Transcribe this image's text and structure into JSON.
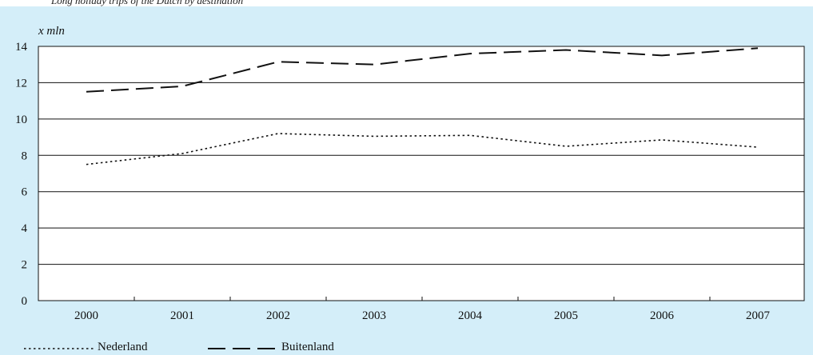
{
  "caption": "Long holiday trips of the Dutch by destination",
  "chart_data": {
    "type": "line",
    "title": "Long holiday trips of the Dutch by destination",
    "ylabel": "x mln",
    "xlabel": "",
    "categories": [
      "2000",
      "2001",
      "2002",
      "2003",
      "2004",
      "2005",
      "2006",
      "2007"
    ],
    "yticks": [
      "0",
      "2",
      "4",
      "6",
      "8",
      "10",
      "12",
      "14"
    ],
    "ylim": [
      0,
      14
    ],
    "grid": "horizontal",
    "legend_position": "bottom",
    "series": [
      {
        "name": "Nederland",
        "style": "dotted",
        "values": [
          7.5,
          8.1,
          9.2,
          9.05,
          9.1,
          8.5,
          8.85,
          8.45
        ]
      },
      {
        "name": "Buitenland",
        "style": "dashed",
        "values": [
          11.5,
          11.8,
          13.15,
          13.0,
          13.6,
          13.8,
          13.5,
          13.9
        ]
      }
    ],
    "colors": {
      "background": "#d4eef9",
      "plot": "#ffffff",
      "line": "#111111"
    }
  }
}
